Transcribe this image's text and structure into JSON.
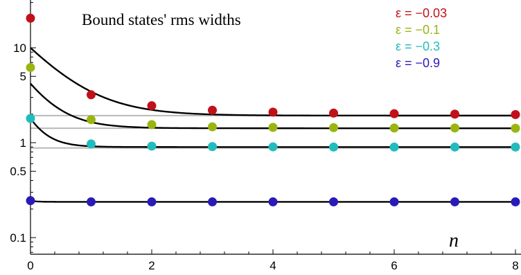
{
  "chart_data": {
    "type": "scatter",
    "title": "Bound states' rms widths",
    "xlabel": "n",
    "ylabel": "",
    "x_scale": "linear",
    "y_scale": "log",
    "xlim": [
      0,
      8
    ],
    "ylim": [
      0.07,
      30
    ],
    "x_ticks": [
      0,
      2,
      4,
      6,
      8
    ],
    "x_tick_labels": [
      "0",
      "2",
      "4",
      "6",
      "8"
    ],
    "y_ticks": [
      0.1,
      0.5,
      1,
      5,
      10
    ],
    "y_tick_labels": [
      "0.1",
      "0.5",
      "1",
      "5",
      "10"
    ],
    "legend_position": "top-right",
    "grid": false,
    "series": [
      {
        "name": "ε = −0.03",
        "color": "#c0111a",
        "x": [
          0,
          1,
          2,
          3,
          4,
          5,
          6,
          7,
          8
        ],
        "y": [
          20.5,
          3.2,
          2.45,
          2.2,
          2.1,
          2.05,
          2.02,
          2.0,
          1.98
        ],
        "curve": {
          "asymptote": 1.93,
          "start": 10.0,
          "tau": 0.6
        },
        "reference_line": 1.93
      },
      {
        "name": "ε = −0.1",
        "color": "#9ab510",
        "x": [
          0,
          1,
          2,
          3,
          4,
          5,
          6,
          7,
          8
        ],
        "y": [
          6.2,
          1.75,
          1.55,
          1.47,
          1.45,
          1.44,
          1.43,
          1.43,
          1.42
        ],
        "curve": {
          "asymptote": 1.42,
          "start": 4.2,
          "tau": 0.4
        },
        "reference_line": 1.42
      },
      {
        "name": "ε = −0.3",
        "color": "#22bcbc",
        "x": [
          0,
          1,
          2,
          3,
          4,
          5,
          6,
          7,
          8
        ],
        "y": [
          1.8,
          0.97,
          0.92,
          0.91,
          0.905,
          0.9,
          0.9,
          0.9,
          0.9
        ],
        "curve": {
          "asymptote": 0.9,
          "start": 1.8,
          "tau": 0.25
        },
        "reference_line": 0.88
      },
      {
        "name": "ε = −0.9",
        "color": "#2a1ab8",
        "x": [
          0,
          1,
          2,
          3,
          4,
          5,
          6,
          7,
          8
        ],
        "y": [
          0.245,
          0.238,
          0.238,
          0.238,
          0.238,
          0.238,
          0.238,
          0.238,
          0.238
        ],
        "curve": {
          "asymptote": 0.238,
          "start": 0.245,
          "tau": 0.1
        },
        "reference_line": null
      }
    ]
  }
}
